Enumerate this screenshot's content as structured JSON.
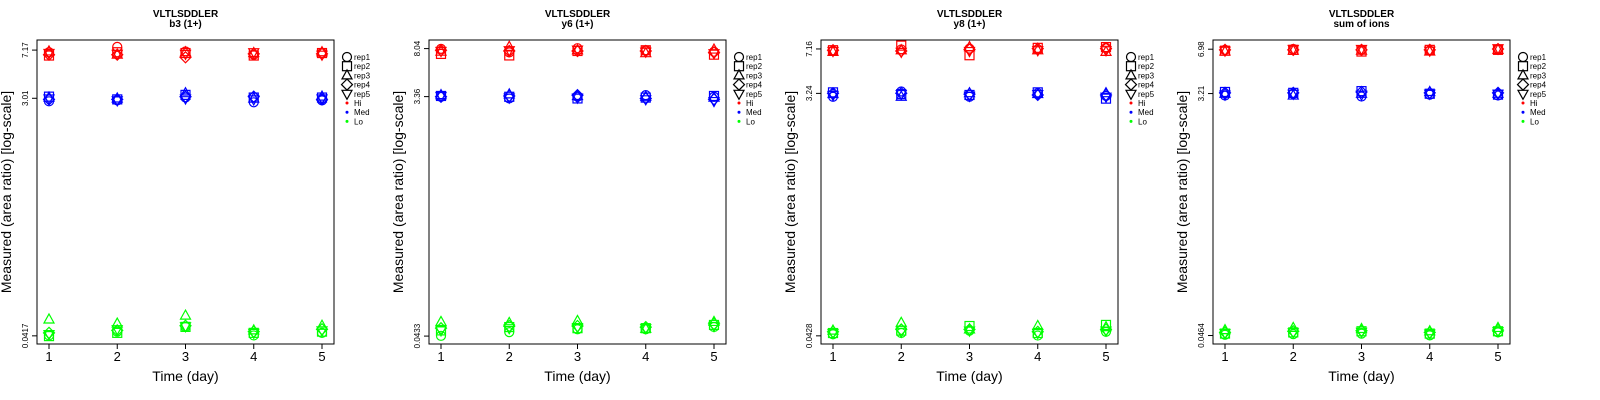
{
  "chart_data": [
    {
      "type": "scatter",
      "title": "VLTLSDDLER",
      "subtitle": "b3 (1+)",
      "xlabel": "Time (day)",
      "ylabel": "Measured (area ratio) [log-scale]",
      "x_ticks": [
        "1",
        "2",
        "3",
        "4",
        "5"
      ],
      "y_ticks": [
        {
          "label": "0.0417",
          "value": 0.0417
        },
        {
          "label": "3.01",
          "value": 3.01
        },
        {
          "label": "7.17",
          "value": 7.17
        }
      ],
      "ylim_log": [
        0.036,
        8.6
      ],
      "series": [
        {
          "name": "Hi",
          "color": "#ff0000",
          "points": [
            [
              [
                6.9,
                6.5,
                7.0,
                6.6,
                6.8
              ],
              [
                7.6,
                6.9,
                6.6,
                6.6,
                6.7
              ],
              [
                7.0,
                6.8,
                6.9,
                6.3,
                6.7
              ],
              [
                6.6,
                6.5,
                6.8,
                6.7,
                6.9
              ],
              [
                6.8,
                6.8,
                6.9,
                6.7,
                6.6
              ]
            ]
          ]
        },
        {
          "name": "Med",
          "color": "#0000ff",
          "points": [
            [
              [
                2.85,
                3.1,
                3.05,
                2.95,
                3.0
              ],
              [
                2.9,
                2.95,
                3.0,
                2.95,
                2.9
              ],
              [
                3.05,
                3.2,
                3.3,
                3.1,
                3.0
              ],
              [
                2.8,
                3.05,
                3.0,
                3.1,
                2.95
              ],
              [
                2.9,
                3.05,
                3.1,
                2.95,
                3.0
              ]
            ]
          ]
        },
        {
          "name": "Lo",
          "color": "#00ff00",
          "points": [
            [
              [
                0.042,
                0.0415,
                0.056,
                0.044,
                0.043
              ],
              [
                0.045,
                0.044,
                0.052,
                0.046,
                0.047
              ],
              [
                0.049,
                0.049,
                0.06,
                0.05,
                0.0495
              ],
              [
                0.042,
                0.044,
                0.046,
                0.045,
                0.044
              ],
              [
                0.044,
                0.045,
                0.05,
                0.047,
                0.046
              ]
            ]
          ]
        }
      ]
    },
    {
      "type": "scatter",
      "title": "VLTLSDDLER",
      "subtitle": "y6 (1+)",
      "xlabel": "Time (day)",
      "ylabel": "Measured (area ratio) [log-scale]",
      "x_ticks": [
        "1",
        "2",
        "3",
        "4",
        "5"
      ],
      "y_ticks": [
        {
          "label": "0.0433",
          "value": 0.0433
        },
        {
          "label": "3.36",
          "value": 3.36
        },
        {
          "label": "8.04",
          "value": 8.04
        }
      ],
      "ylim_log": [
        0.0375,
        9.4
      ],
      "series": [
        {
          "name": "Hi",
          "color": "#ff0000",
          "points": [
            [
              [
                8.0,
                7.3,
                7.6,
                7.8,
                7.7
              ],
              [
                7.5,
                7.1,
                8.3,
                7.7,
                7.8
              ],
              [
                8.1,
                7.7,
                7.8,
                7.7,
                7.9
              ],
              [
                7.8,
                7.8,
                7.4,
                7.7,
                7.6
              ],
              [
                7.6,
                7.2,
                7.9,
                7.5,
                7.4
              ]
            ]
          ]
        },
        {
          "name": "Med",
          "color": "#0000ff",
          "points": [
            [
              [
                3.35,
                3.4,
                3.45,
                3.35,
                3.4
              ],
              [
                3.25,
                3.35,
                3.5,
                3.4,
                3.3
              ],
              [
                3.35,
                3.25,
                3.4,
                3.45,
                3.3
              ],
              [
                3.45,
                3.3,
                3.35,
                3.25,
                3.2
              ],
              [
                3.35,
                3.4,
                3.3,
                3.2,
                3.1
              ]
            ]
          ]
        },
        {
          "name": "Lo",
          "color": "#00ff00",
          "points": [
            [
              [
                0.0435,
                0.048,
                0.056,
                0.05,
                0.048
              ],
              [
                0.0465,
                0.051,
                0.055,
                0.052,
                0.05
              ],
              [
                0.049,
                0.05,
                0.057,
                0.052,
                0.051
              ],
              [
                0.049,
                0.05,
                0.0495,
                0.051,
                0.05
              ],
              [
                0.051,
                0.053,
                0.056,
                0.054,
                0.052
              ]
            ]
          ]
        }
      ]
    },
    {
      "type": "scatter",
      "title": "VLTLSDDLER",
      "subtitle": "y8 (1+)",
      "xlabel": "Time (day)",
      "ylabel": "Measured (area ratio) [log-scale]",
      "x_ticks": [
        "1",
        "2",
        "3",
        "4",
        "5"
      ],
      "y_ticks": [
        {
          "label": "0.0428",
          "value": 0.0428
        },
        {
          "label": "3.24",
          "value": 3.24
        },
        {
          "label": "7.16",
          "value": 7.16
        }
      ],
      "ylim_log": [
        0.037,
        8.4
      ],
      "series": [
        {
          "name": "Hi",
          "color": "#ff0000",
          "points": [
            [
              [
                6.9,
                7.0,
                6.8,
                7.0,
                6.9
              ],
              [
                7.1,
                7.6,
                7.0,
                6.9,
                6.8
              ],
              [
                7.2,
                6.4,
                7.4,
                7.1,
                6.9
              ],
              [
                7.1,
                7.3,
                7.0,
                7.2,
                7.0
              ],
              [
                7.3,
                7.4,
                6.8,
                7.2,
                7.0
              ]
            ]
          ]
        },
        {
          "name": "Med",
          "color": "#0000ff",
          "points": [
            [
              [
                3.05,
                3.3,
                3.2,
                3.25,
                3.15
              ],
              [
                3.35,
                3.2,
                3.05,
                3.25,
                3.2
              ],
              [
                3.05,
                3.15,
                3.25,
                3.2,
                3.1
              ],
              [
                3.25,
                3.3,
                3.2,
                3.15,
                3.2
              ],
              [
                3.1,
                2.95,
                3.25,
                3.15,
                3.05
              ]
            ]
          ]
        },
        {
          "name": "Lo",
          "color": "#00ff00",
          "points": [
            [
              [
                0.044,
                0.045,
                0.047,
                0.046,
                0.045
              ],
              [
                0.045,
                0.047,
                0.054,
                0.048,
                0.046
              ],
              [
                0.047,
                0.051,
                0.048,
                0.048,
                0.047
              ],
              [
                0.043,
                0.045,
                0.051,
                0.046,
                0.045
              ],
              [
                0.046,
                0.052,
                0.05,
                0.048,
                0.047
              ]
            ]
          ]
        }
      ]
    },
    {
      "type": "scatter",
      "title": "VLTLSDDLER",
      "subtitle": "sum of ions",
      "xlabel": "Time (day)",
      "ylabel": "Measured (area ratio) [log-scale]",
      "x_ticks": [
        "1",
        "2",
        "3",
        "4",
        "5"
      ],
      "y_ticks": [
        {
          "label": "0.0464",
          "value": 0.0464
        },
        {
          "label": "3.21",
          "value": 3.21
        },
        {
          "label": "6.98",
          "value": 6.98
        }
      ],
      "ylim_log": [
        0.04,
        8.2
      ],
      "series": [
        {
          "name": "Hi",
          "color": "#ff0000",
          "points": [
            [
              [
                6.9,
                6.8,
                6.7,
                6.9,
                6.8
              ],
              [
                7.0,
                6.9,
                6.8,
                6.9,
                7.0
              ],
              [
                6.9,
                6.7,
                6.8,
                6.9,
                7.0
              ],
              [
                6.8,
                6.9,
                6.7,
                6.9,
                6.8
              ],
              [
                7.0,
                6.9,
                6.9,
                7.0,
                7.1
              ]
            ]
          ]
        },
        {
          "name": "Med",
          "color": "#0000ff",
          "points": [
            [
              [
                3.1,
                3.3,
                3.2,
                3.25,
                3.15
              ],
              [
                3.2,
                3.25,
                3.1,
                3.25,
                3.2
              ],
              [
                3.05,
                3.35,
                3.2,
                3.3,
                3.15
              ],
              [
                3.15,
                3.2,
                3.3,
                3.25,
                3.2
              ],
              [
                3.1,
                3.15,
                3.2,
                3.25,
                3.2
              ]
            ]
          ]
        },
        {
          "name": "Lo",
          "color": "#00ff00",
          "points": [
            [
              [
                0.047,
                0.048,
                0.051,
                0.049,
                0.0485
              ],
              [
                0.0475,
                0.049,
                0.053,
                0.05,
                0.049
              ],
              [
                0.048,
                0.05,
                0.052,
                0.0505,
                0.0495
              ],
              [
                0.0465,
                0.048,
                0.05,
                0.049,
                0.048
              ],
              [
                0.049,
                0.05,
                0.053,
                0.051,
                0.05
              ]
            ]
          ]
        }
      ]
    }
  ],
  "legend": {
    "reps": [
      "rep1",
      "rep2",
      "rep3",
      "rep4",
      "rep5"
    ],
    "groups": [
      {
        "label": "Hi",
        "color": "#ff0000"
      },
      {
        "label": "Med",
        "color": "#0000ff"
      },
      {
        "label": "Lo",
        "color": "#00ff00"
      }
    ]
  }
}
